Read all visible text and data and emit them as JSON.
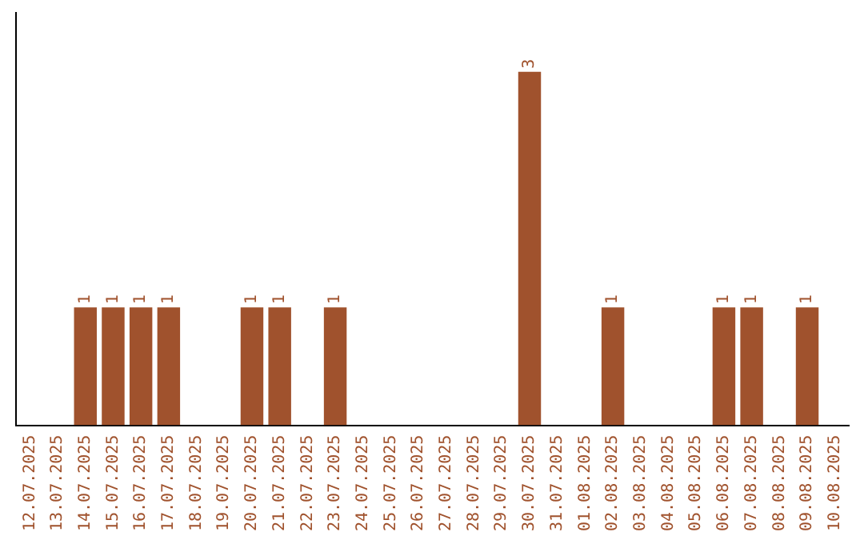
{
  "chart_data": {
    "type": "bar",
    "categories": [
      "12.07.2025",
      "13.07.2025",
      "14.07.2025",
      "15.07.2025",
      "16.07.2025",
      "17.07.2025",
      "18.07.2025",
      "19.07.2025",
      "20.07.2025",
      "21.07.2025",
      "22.07.2025",
      "23.07.2025",
      "24.07.2025",
      "25.07.2025",
      "26.07.2025",
      "27.07.2025",
      "28.07.2025",
      "29.07.2025",
      "30.07.2025",
      "31.07.2025",
      "01.08.2025",
      "02.08.2025",
      "03.08.2025",
      "04.08.2025",
      "05.08.2025",
      "06.08.2025",
      "07.08.2025",
      "08.08.2025",
      "09.08.2025",
      "10.08.2025"
    ],
    "values": [
      0,
      0,
      1,
      1,
      1,
      1,
      0,
      0,
      1,
      1,
      0,
      1,
      0,
      0,
      0,
      0,
      0,
      0,
      3,
      0,
      0,
      1,
      0,
      0,
      0,
      1,
      1,
      0,
      1,
      0
    ],
    "value_labels": [
      null,
      null,
      "1",
      "1",
      "1",
      "1",
      null,
      null,
      "1",
      "1",
      null,
      "1",
      null,
      null,
      null,
      null,
      null,
      null,
      "3",
      null,
      null,
      "1",
      null,
      null,
      null,
      "1",
      "1",
      null,
      "1",
      null
    ],
    "color": "#a0522d",
    "grid": false,
    "legend": false,
    "tick_labels": "x"
  }
}
